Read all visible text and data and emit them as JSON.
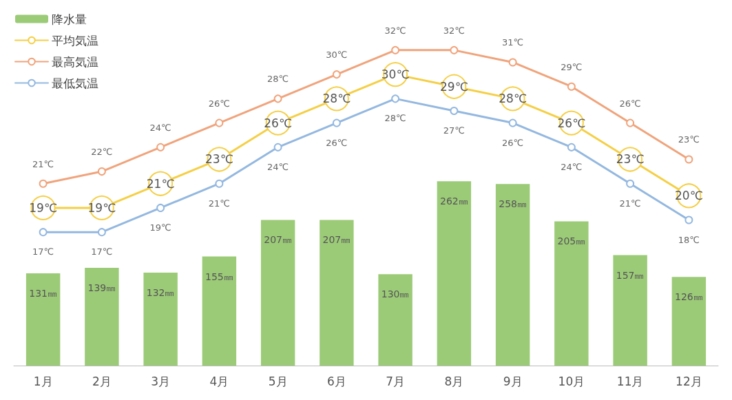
{
  "chart_data": {
    "type": "bar",
    "categories": [
      "1月",
      "2月",
      "3月",
      "4月",
      "5月",
      "6月",
      "7月",
      "8月",
      "9月",
      "10月",
      "11月",
      "12月"
    ],
    "series": [
      {
        "name": "降水量",
        "color": "#9ccb78",
        "values": [
          131,
          139,
          132,
          155,
          207,
          207,
          130,
          262,
          258,
          205,
          157,
          126
        ],
        "value_labels": [
          "131㎜",
          "139㎜",
          "132㎜",
          "155㎜",
          "207㎜",
          "207㎜",
          "130㎜",
          "262㎜",
          "258㎜",
          "205㎜",
          "157㎜",
          "126㎜"
        ]
      },
      {
        "name": "平均気温",
        "type": "line",
        "axis": "y2",
        "color": "#f5cf45",
        "values": [
          19,
          19,
          21,
          23,
          26,
          28,
          30,
          29,
          28,
          26,
          23,
          20
        ],
        "value_labels": [
          "19℃",
          "19℃",
          "21℃",
          "23℃",
          "26℃",
          "28℃",
          "30℃",
          "29℃",
          "28℃",
          "26℃",
          "23℃",
          "20℃"
        ]
      },
      {
        "name": "最高気温",
        "type": "line",
        "axis": "y2",
        "color": "#f0a47c",
        "values": [
          21,
          22,
          24,
          26,
          28,
          30,
          32,
          32,
          31,
          29,
          26,
          23
        ],
        "value_labels": [
          "21℃",
          "22℃",
          "24℃",
          "26℃",
          "28℃",
          "30℃",
          "32℃",
          "32℃",
          "31℃",
          "29℃",
          "26℃",
          "23℃"
        ]
      },
      {
        "name": "最低気温",
        "type": "line",
        "axis": "y2",
        "color": "#94b8e0",
        "values": [
          17,
          17,
          19,
          21,
          24,
          26,
          28,
          27,
          26,
          24,
          21,
          18
        ],
        "value_labels": [
          "17℃",
          "17℃",
          "19℃",
          "21℃",
          "24℃",
          "26℃",
          "28℃",
          "27℃",
          "26℃",
          "24℃",
          "21℃",
          "18℃"
        ]
      }
    ],
    "ylim": [
      0,
      500
    ],
    "y2lim": [
      6,
      35
    ],
    "tick_labels": "x",
    "grid": false,
    "legend": "top left",
    "marker": "circle",
    "line_style": "solid"
  }
}
